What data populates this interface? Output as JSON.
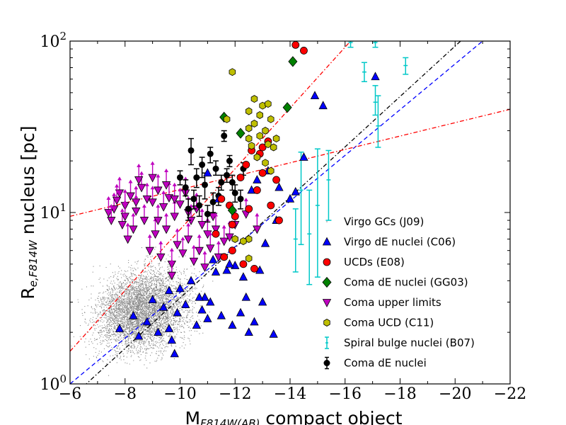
{
  "chart_data": {
    "type": "scatter",
    "title": "",
    "xlabel": "M_F814W(AB) compact object",
    "xlabel_main": "M",
    "xlabel_sub": "F814W(AB)",
    "xlabel_rest": " compact object",
    "ylabel": "R_e,F814W nucleus [pc]",
    "ylabel_main": "R",
    "ylabel_sub": "e,F814W",
    "ylabel_rest": " nucleus [pc]",
    "xlim": [
      -6,
      -22
    ],
    "ylim": [
      1,
      100
    ],
    "yscale": "log",
    "x_ticks": [
      -6,
      -8,
      -10,
      -12,
      -14,
      -16,
      -18,
      -20,
      -22
    ],
    "x_tick_labels": [
      "−6",
      "−8",
      "−10",
      "−12",
      "−14",
      "−16",
      "−18",
      "−20",
      "−22"
    ],
    "y_ticks": [
      1,
      10,
      100
    ],
    "y_tick_labels": [
      {
        "base": "10",
        "exp": "0"
      },
      {
        "base": "10",
        "exp": "1"
      },
      {
        "base": "10",
        "exp": "2"
      }
    ],
    "legend_position": "lower-right",
    "legend": [
      {
        "label": "Virgo GCs (J09)",
        "marker": "dot",
        "color": "#8c8c8c"
      },
      {
        "label": "Virgo dE nuclei (C06)",
        "marker": "triangle-up",
        "color": "#0000ff"
      },
      {
        "label": "UCDs (E08)",
        "marker": "circle",
        "color": "#ff0000"
      },
      {
        "label": "Coma dE nuclei (GG03)",
        "marker": "diamond",
        "color": "#008000"
      },
      {
        "label": "Coma upper limits",
        "marker": "triangle-down",
        "color": "#bf00bf"
      },
      {
        "label": "Coma UCD (C11)",
        "marker": "hexagon",
        "color": "#bfbf00"
      },
      {
        "label": "Spiral bulge nuclei (B07)",
        "marker": "errorbar",
        "color": "#00c8c8"
      },
      {
        "label": "Coma dE nuclei",
        "marker": "circle-errorbar",
        "color": "#000000"
      }
    ],
    "reference_lines": [
      {
        "name": "blue-dashed",
        "color": "#0000ff",
        "style": "dashed",
        "points": [
          [
            -6,
            1.0
          ],
          [
            -21,
            100
          ]
        ]
      },
      {
        "name": "black-dashdot",
        "color": "#000000",
        "style": "dashdot",
        "points": [
          [
            -6.5,
            0.97
          ],
          [
            -20.2,
            100
          ]
        ]
      },
      {
        "name": "red-dashdot-steep",
        "color": "#ff0000",
        "style": "dashdot",
        "points": [
          [
            -6,
            1.55
          ],
          [
            -16.2,
            100
          ]
        ]
      },
      {
        "name": "red-dashdot-shallow",
        "color": "#ff0000",
        "style": "dashdot",
        "points": [
          [
            -6,
            9.5
          ],
          [
            -22,
            40
          ]
        ]
      }
    ],
    "series": [
      {
        "name": "Virgo dE nuclei (C06)",
        "marker": "triangle-up",
        "color": "#0000ff",
        "points": [
          [
            -7.8,
            2.1
          ],
          [
            -8.3,
            2.5
          ],
          [
            -8.5,
            1.9
          ],
          [
            -8.8,
            2.3
          ],
          [
            -9.0,
            3.1
          ],
          [
            -9.2,
            2.0
          ],
          [
            -9.4,
            2.8
          ],
          [
            -9.6,
            2.1
          ],
          [
            -9.7,
            1.8
          ],
          [
            -9.8,
            1.5
          ],
          [
            -9.9,
            2.6
          ],
          [
            -10.0,
            3.6
          ],
          [
            -10.2,
            2.9
          ],
          [
            -10.4,
            4.0
          ],
          [
            -10.6,
            2.2
          ],
          [
            -10.8,
            2.7
          ],
          [
            -10.9,
            3.2
          ],
          [
            -11.0,
            2.4
          ],
          [
            -11.1,
            3.0
          ],
          [
            -11.2,
            5.3
          ],
          [
            -11.3,
            4.5
          ],
          [
            -11.5,
            2.5
          ],
          [
            -11.7,
            4.6
          ],
          [
            -11.9,
            2.2
          ],
          [
            -12.0,
            4.9
          ],
          [
            -12.2,
            2.6
          ],
          [
            -12.4,
            3.2
          ],
          [
            -12.5,
            2.0
          ],
          [
            -12.7,
            2.3
          ],
          [
            -12.9,
            4.6
          ],
          [
            -13.4,
            1.95
          ],
          [
            -13.1,
            6.6
          ],
          [
            -13.5,
            9.0
          ],
          [
            -14.2,
            13.2
          ],
          [
            -14.5,
            21.0
          ],
          [
            -14.0,
            12.0
          ],
          [
            -14.9,
            48.0
          ],
          [
            -15.2,
            42.0
          ],
          [
            -17.1,
            62.0
          ],
          [
            -9.6,
            3.5
          ],
          [
            -10.7,
            3.2
          ],
          [
            -11.8,
            5.0
          ],
          [
            -12.3,
            4.2
          ],
          [
            -13.0,
            3.0
          ],
          [
            -13.2,
            17.5
          ],
          [
            -12.8,
            15.5
          ],
          [
            -12.6,
            13.5
          ],
          [
            -11.0,
            17.0
          ],
          [
            -11.4,
            12.0
          ],
          [
            -13.6,
            14.0
          ]
        ]
      },
      {
        "name": "UCDs (E08)",
        "marker": "circle",
        "color": "#ff0000",
        "points": [
          [
            -14.2,
            95
          ],
          [
            -14.5,
            88
          ],
          [
            -12.6,
            23
          ],
          [
            -12.9,
            22
          ],
          [
            -13.2,
            26
          ],
          [
            -12.4,
            19
          ],
          [
            -13.0,
            17
          ],
          [
            -12.8,
            13.5
          ],
          [
            -13.5,
            15.5
          ],
          [
            -13.3,
            11
          ],
          [
            -13.6,
            9
          ],
          [
            -12.5,
            10.5
          ],
          [
            -12.0,
            9.5
          ],
          [
            -11.8,
            11
          ],
          [
            -11.5,
            12
          ],
          [
            -11.3,
            7.5
          ],
          [
            -11.6,
            5.5
          ],
          [
            -11.9,
            6
          ],
          [
            -12.3,
            5
          ],
          [
            -13.0,
            24
          ],
          [
            -12.2,
            16
          ],
          [
            -11.9,
            8.5
          ],
          [
            -12.7,
            4.7
          ]
        ]
      },
      {
        "name": "Coma dE nuclei (GG03)",
        "marker": "diamond",
        "color": "#008000",
        "points": [
          [
            -14.1,
            76
          ],
          [
            -13.9,
            41
          ],
          [
            -11.6,
            36
          ],
          [
            -12.2,
            29
          ],
          [
            -11.9,
            10.3
          ]
        ]
      },
      {
        "name": "Coma UCD (C11)",
        "marker": "hexagon",
        "color": "#bfbf00",
        "points": [
          [
            -11.9,
            66
          ],
          [
            -12.7,
            46
          ],
          [
            -13.0,
            42
          ],
          [
            -13.2,
            43
          ],
          [
            -12.5,
            39
          ],
          [
            -12.9,
            37
          ],
          [
            -13.3,
            35
          ],
          [
            -12.7,
            33
          ],
          [
            -12.5,
            31
          ],
          [
            -13.1,
            30
          ],
          [
            -12.9,
            28
          ],
          [
            -13.5,
            27
          ],
          [
            -12.5,
            27
          ],
          [
            -13.2,
            25
          ],
          [
            -12.6,
            24.5
          ],
          [
            -13.4,
            24
          ],
          [
            -12.8,
            21
          ],
          [
            -13.1,
            19.5
          ],
          [
            -13.3,
            17.5
          ],
          [
            -12.0,
            7
          ],
          [
            -12.5,
            7
          ],
          [
            -12.5,
            5.4
          ],
          [
            -12.3,
            6.8
          ],
          [
            -11.7,
            35
          ]
        ]
      }
    ],
    "series_with_errors": [
      {
        "name": "Coma dE nuclei",
        "marker": "circle-errorbar",
        "color": "#000000",
        "points": [
          {
            "x": -10.4,
            "y": 23,
            "lo": 19,
            "hi": 27
          },
          {
            "x": -11.1,
            "y": 22,
            "lo": 19.5,
            "hi": 24
          },
          {
            "x": -11.6,
            "y": 28,
            "lo": 26,
            "hi": 30
          },
          {
            "x": -10.8,
            "y": 19,
            "lo": 16,
            "hi": 21
          },
          {
            "x": -11.3,
            "y": 18,
            "lo": 16.5,
            "hi": 20
          },
          {
            "x": -10.6,
            "y": 16,
            "lo": 14,
            "hi": 18
          },
          {
            "x": -10.2,
            "y": 14,
            "lo": 12.5,
            "hi": 15.5
          },
          {
            "x": -10.9,
            "y": 14.5,
            "lo": 12,
            "hi": 17
          },
          {
            "x": -11.5,
            "y": 15,
            "lo": 13.5,
            "hi": 16.5
          },
          {
            "x": -11.7,
            "y": 16.5,
            "lo": 15,
            "hi": 18
          },
          {
            "x": -12.0,
            "y": 13,
            "lo": 11.5,
            "hi": 14.5
          },
          {
            "x": -11.9,
            "y": 15,
            "lo": 13.5,
            "hi": 16.5
          },
          {
            "x": -11.4,
            "y": 12.5,
            "lo": 11,
            "hi": 14
          },
          {
            "x": -11.2,
            "y": 11.5,
            "lo": 10,
            "hi": 13
          },
          {
            "x": -10.7,
            "y": 11,
            "lo": 9.5,
            "hi": 12.5
          },
          {
            "x": -10.3,
            "y": 10.5,
            "lo": 9,
            "hi": 12
          },
          {
            "x": -11.0,
            "y": 9.8,
            "lo": 8.8,
            "hi": 11
          },
          {
            "x": -12.3,
            "y": 18,
            "lo": 16.5,
            "hi": 19.5
          },
          {
            "x": -12.2,
            "y": 12,
            "lo": 10.5,
            "hi": 13.5
          },
          {
            "x": -10.5,
            "y": 12,
            "lo": 10.5,
            "hi": 13.5
          },
          {
            "x": -10.0,
            "y": 16,
            "lo": 14.5,
            "hi": 17.5
          },
          {
            "x": -11.8,
            "y": 20,
            "lo": 18.5,
            "hi": 21.5
          }
        ]
      },
      {
        "name": "Spiral bulge nuclei (B07)",
        "marker": "errorbar",
        "color": "#00c8c8",
        "points": [
          {
            "x": -14.2,
            "y": 7.0,
            "lo": 4.5,
            "hi": 10.5
          },
          {
            "x": -14.4,
            "y": 13.5,
            "lo": 6.5,
            "hi": 22.5
          },
          {
            "x": -14.7,
            "y": 7.5,
            "lo": 3.8,
            "hi": 13.5
          },
          {
            "x": -15.0,
            "y": 11.0,
            "lo": 4.2,
            "hi": 23.5
          },
          {
            "x": -15.4,
            "y": 15.5,
            "lo": 9.0,
            "hi": 23.0
          },
          {
            "x": -16.2,
            "y": 98,
            "lo": 92,
            "hi": 100
          },
          {
            "x": -16.7,
            "y": 66,
            "lo": 58,
            "hi": 75
          },
          {
            "x": -17.1,
            "y": 44,
            "lo": 37,
            "hi": 55
          },
          {
            "x": -17.2,
            "y": 32,
            "lo": 24,
            "hi": 48
          },
          {
            "x": -17.1,
            "y": 98,
            "lo": 92,
            "hi": 100
          },
          {
            "x": -18.2,
            "y": 72,
            "lo": 64,
            "hi": 80
          }
        ]
      }
    ],
    "upper_limits": {
      "name": "Coma upper limits",
      "marker": "triangle-down",
      "color": "#bf00bf",
      "arrow_up": true,
      "points": [
        [
          -7.4,
          10.0
        ],
        [
          -7.6,
          10.5
        ],
        [
          -7.8,
          13.0
        ],
        [
          -8.0,
          11.0
        ],
        [
          -8.2,
          12.5
        ],
        [
          -8.4,
          10.2
        ],
        [
          -8.6,
          14.0
        ],
        [
          -8.8,
          12.0
        ],
        [
          -9.0,
          11.5
        ],
        [
          -9.2,
          13.5
        ],
        [
          -9.4,
          10.8
        ],
        [
          -9.6,
          12.2
        ],
        [
          -9.8,
          9.5
        ],
        [
          -10.0,
          11.2
        ],
        [
          -10.2,
          13.0
        ],
        [
          -10.4,
          9.0
        ],
        [
          -10.6,
          10.5
        ],
        [
          -10.8,
          8.5
        ],
        [
          -11.0,
          7.5
        ],
        [
          -11.2,
          9.5
        ],
        [
          -7.5,
          9.0
        ],
        [
          -7.9,
          8.5
        ],
        [
          -8.3,
          8.0
        ],
        [
          -8.7,
          9.0
        ],
        [
          -9.1,
          7.5
        ],
        [
          -9.5,
          8.0
        ],
        [
          -9.9,
          6.5
        ],
        [
          -10.3,
          7.0
        ],
        [
          -10.7,
          6.0
        ],
        [
          -11.1,
          6.2
        ],
        [
          -8.1,
          7.0
        ],
        [
          -8.9,
          6.0
        ],
        [
          -9.3,
          5.5
        ],
        [
          -9.7,
          5.0
        ],
        [
          -10.1,
          5.8
        ],
        [
          -10.5,
          5.2
        ],
        [
          -11.4,
          5.5
        ],
        [
          -11.6,
          6.8
        ],
        [
          -11.8,
          7.2
        ],
        [
          -12.0,
          8.5
        ],
        [
          -12.4,
          9.8
        ],
        [
          -12.8,
          8.0
        ],
        [
          -8.5,
          15.5
        ],
        [
          -9.0,
          16.0
        ],
        [
          -9.5,
          14.5
        ],
        [
          -7.7,
          11.8
        ],
        [
          -8.4,
          11.5
        ],
        [
          -9.8,
          12.0
        ],
        [
          -10.3,
          10.0
        ],
        [
          -11.3,
          8.0
        ],
        [
          -8.0,
          9.5
        ],
        [
          -9.2,
          9.0
        ],
        [
          -10.9,
          4.8
        ],
        [
          -9.7,
          4.3
        ]
      ]
    }
  }
}
